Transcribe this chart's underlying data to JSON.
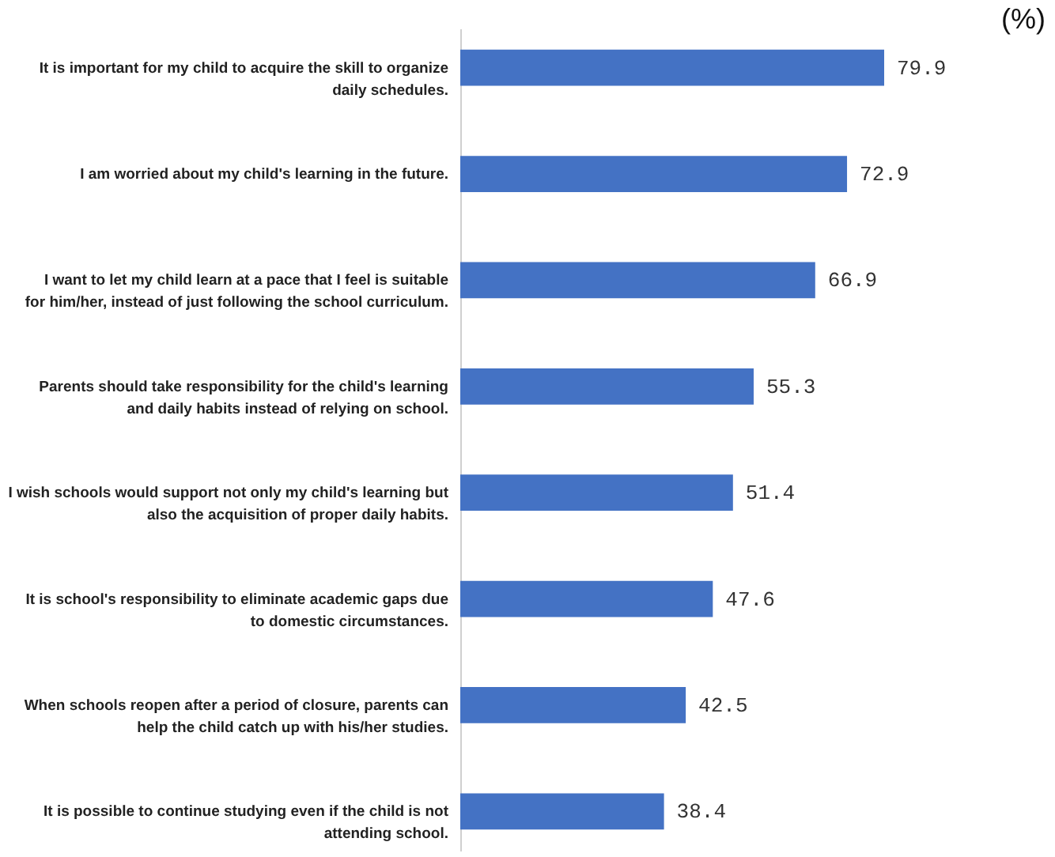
{
  "chart_data": {
    "type": "bar",
    "orientation": "horizontal",
    "categories": [
      "It is important for my child to acquire the skill to organize daily schedules.",
      "I am worried about my child's learning in the future.",
      "I want to let my child learn at a pace that I feel is suitable for him/her, instead of just following the school curriculum.",
      "Parents should take responsibility for the child's learning and daily habits instead of relying on school.",
      "I wish schools would support not only my child's learning but also the acquisition of proper daily habits.",
      "It is school's responsibility to eliminate academic gaps due to domestic circumstances.",
      "When schools reopen after a period of closure, parents can help the child catch up with his/her studies.",
      "It is possible to continue studying even if the child is not attending school."
    ],
    "values": [
      79.9,
      72.9,
      66.9,
      55.3,
      51.4,
      47.6,
      42.5,
      38.4
    ],
    "color": "#4472c4",
    "data_labels": true,
    "tick_labels": "y",
    "annotations": [
      "(%)"
    ]
  }
}
